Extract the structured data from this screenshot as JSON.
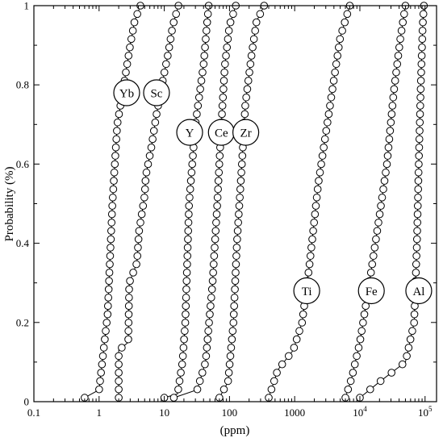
{
  "chart_data": {
    "type": "scatter",
    "xlabel": "(ppm)",
    "ylabel": "Probability (%)",
    "xscale": "log",
    "xlim": [
      0.1,
      150000
    ],
    "ylim": [
      0,
      1
    ],
    "x_ticks": [
      {
        "value": 0.1,
        "label": "0.1"
      },
      {
        "value": 1,
        "label": "1"
      },
      {
        "value": 10,
        "label": "10"
      },
      {
        "value": 100,
        "label": "100"
      },
      {
        "value": 1000,
        "label": "1000"
      },
      {
        "value": 10000,
        "label": "10",
        "sup": "4"
      },
      {
        "value": 100000,
        "label": "10",
        "sup": "5"
      }
    ],
    "y_ticks": [
      {
        "value": 0,
        "label": "0"
      },
      {
        "value": 0.2,
        "label": "0.2"
      },
      {
        "value": 0.4,
        "label": "0.4"
      },
      {
        "value": 0.6,
        "label": "0.6"
      },
      {
        "value": 0.8,
        "label": "0.8"
      },
      {
        "value": 1,
        "label": "1"
      }
    ],
    "grid": false,
    "legend": "none",
    "marker": {
      "shape": "circle",
      "fill": "#ffffff",
      "stroke": "#000000"
    },
    "series": [
      {
        "name": "Yb",
        "label_at": [
          2.65,
          0.78
        ],
        "points": [
          [
            0.6,
            0.01
          ],
          [
            1.0,
            0.03
          ],
          [
            1.1,
            0.09
          ],
          [
            1.35,
            0.22
          ],
          [
            1.6,
            0.5
          ],
          [
            1.9,
            0.7
          ],
          [
            2.4,
            0.8
          ],
          [
            3.0,
            0.9
          ],
          [
            3.5,
            0.96
          ],
          [
            4.3,
            1.0
          ]
        ]
      },
      {
        "name": "Sc",
        "label_at": [
          7.6,
          0.78
        ],
        "points": [
          [
            2.0,
            0.01
          ],
          [
            2.0,
            0.13
          ],
          [
            2.8,
            0.15
          ],
          [
            2.9,
            0.3
          ],
          [
            3.8,
            0.35
          ],
          [
            4.1,
            0.43
          ],
          [
            5.0,
            0.52
          ],
          [
            5.2,
            0.57
          ],
          [
            6.3,
            0.64
          ],
          [
            7.5,
            0.72
          ],
          [
            9.2,
            0.8
          ],
          [
            11.5,
            0.88
          ],
          [
            13.5,
            0.95
          ],
          [
            16.5,
            1.0
          ]
        ]
      },
      {
        "name": "Y",
        "label_at": [
          24.5,
          0.68
        ],
        "points": [
          [
            10.0,
            0.01
          ],
          [
            16.0,
            0.02
          ],
          [
            19.0,
            0.1
          ],
          [
            21.0,
            0.2
          ],
          [
            24.0,
            0.5
          ],
          [
            30.0,
            0.7
          ],
          [
            40.0,
            0.85
          ],
          [
            45.0,
            0.95
          ],
          [
            48.0,
            1.0
          ]
        ]
      },
      {
        "name": "Ce",
        "label_at": [
          75.0,
          0.68
        ],
        "points": [
          [
            14.0,
            0.01
          ],
          [
            32.0,
            0.03
          ],
          [
            43.0,
            0.1
          ],
          [
            55.0,
            0.3
          ],
          [
            65.0,
            0.5
          ],
          [
            75.0,
            0.7
          ],
          [
            85.0,
            0.85
          ],
          [
            100.0,
            0.95
          ],
          [
            125.0,
            1.0
          ]
        ]
      },
      {
        "name": "Zr",
        "label_at": [
          178.0,
          0.68
        ],
        "points": [
          [
            70.0,
            0.01
          ],
          [
            95.0,
            0.05
          ],
          [
            115.0,
            0.2
          ],
          [
            130.0,
            0.4
          ],
          [
            155.0,
            0.6
          ],
          [
            175.0,
            0.75
          ],
          [
            220.0,
            0.88
          ],
          [
            260.0,
            0.96
          ],
          [
            340.0,
            1.0
          ]
        ]
      },
      {
        "name": "Ti",
        "label_at": [
          1530.0,
          0.28
        ],
        "points": [
          [
            400.0,
            0.01
          ],
          [
            550.0,
            0.08
          ],
          [
            950.0,
            0.13
          ],
          [
            1300.0,
            0.2
          ],
          [
            1700.0,
            0.35
          ],
          [
            2300.0,
            0.55
          ],
          [
            3500.0,
            0.75
          ],
          [
            5000.0,
            0.92
          ],
          [
            7000.0,
            1.0
          ]
        ]
      },
      {
        "name": "Fe",
        "label_at": [
          15000.0,
          0.28
        ],
        "points": [
          [
            6000.0,
            0.01
          ],
          [
            7500.0,
            0.06
          ],
          [
            10000.0,
            0.15
          ],
          [
            14000.0,
            0.3
          ],
          [
            20000.0,
            0.47
          ],
          [
            26000.0,
            0.6
          ],
          [
            33000.0,
            0.78
          ],
          [
            42000.0,
            0.92
          ],
          [
            50000.0,
            1.0
          ]
        ]
      },
      {
        "name": "Al",
        "label_at": [
          80000.0,
          0.28
        ],
        "points": [
          [
            10000.0,
            0.01
          ],
          [
            20000.0,
            0.05
          ],
          [
            50000.0,
            0.1
          ],
          [
            68000.0,
            0.2
          ],
          [
            75000.0,
            0.4
          ],
          [
            80000.0,
            0.6
          ],
          [
            86000.0,
            0.8
          ],
          [
            92000.0,
            0.95
          ],
          [
            96000.0,
            1.0
          ]
        ]
      }
    ]
  }
}
